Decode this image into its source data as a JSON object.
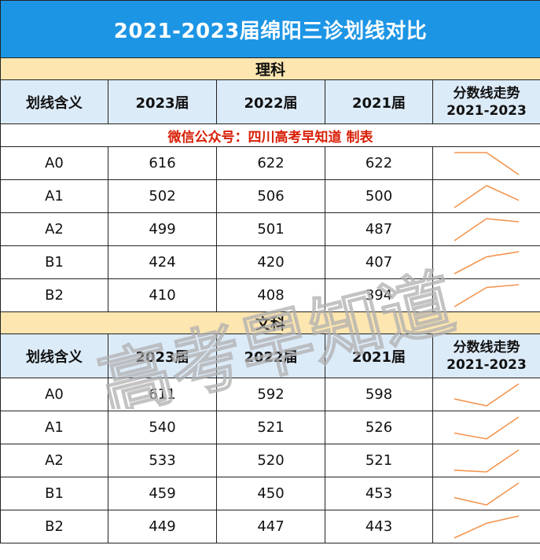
{
  "title": "2021-2023届绵阳三诊划线对比",
  "header": {
    "col_label": "划线含义",
    "col_2023": "2023届",
    "col_2022": "2022届",
    "col_2021": "2021届",
    "col_trend_line1": "分数线走势",
    "col_trend_line2": "2021-2023"
  },
  "notice": "微信公众号：四川高考早知道   制表",
  "sections": [
    {
      "name": "理科",
      "rows": [
        {
          "label": "A0",
          "v2023": "616",
          "v2022": "622",
          "v2021": "622"
        },
        {
          "label": "A1",
          "v2023": "502",
          "v2022": "506",
          "v2021": "500"
        },
        {
          "label": "A2",
          "v2023": "499",
          "v2022": "501",
          "v2021": "487"
        },
        {
          "label": "B1",
          "v2023": "424",
          "v2022": "420",
          "v2021": "407"
        },
        {
          "label": "B2",
          "v2023": "410",
          "v2022": "408",
          "v2021": "394"
        }
      ]
    },
    {
      "name": "文科",
      "rows": [
        {
          "label": "A0",
          "v2023": "611",
          "v2022": "592",
          "v2021": "598"
        },
        {
          "label": "A1",
          "v2023": "540",
          "v2022": "521",
          "v2021": "526"
        },
        {
          "label": "A2",
          "v2023": "533",
          "v2022": "520",
          "v2021": "521"
        },
        {
          "label": "B1",
          "v2023": "459",
          "v2022": "450",
          "v2021": "453"
        },
        {
          "label": "B2",
          "v2023": "449",
          "v2022": "447",
          "v2021": "443"
        }
      ]
    }
  ],
  "watermark": "高考早知道",
  "colors": {
    "title_bg": "#1d95e5",
    "section_bg": "#fde6b0",
    "header_bg": "#dcebf8",
    "notice_text": "#d81e06",
    "sparkline": "#f4944e"
  }
}
